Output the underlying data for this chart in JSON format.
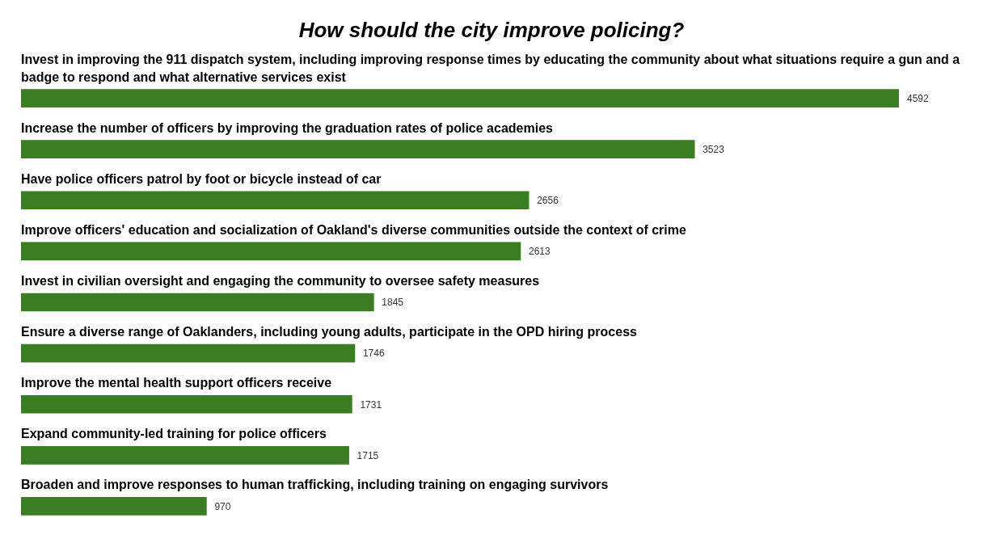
{
  "chart_data": {
    "type": "bar",
    "orientation": "horizontal",
    "title": "How should the city improve policing?",
    "categories": [
      "Invest in improving the 911 dispatch system, including improving response times by educating the community about what situations require a gun and a badge to respond and what alternative services exist",
      "Increase the number of officers by improving the graduation rates of police academies",
      "Have police officers patrol by foot or bicycle instead of car",
      "Improve officers' education and socialization of Oakland's diverse communities outside the context of crime",
      "Invest in civilian oversight and engaging the community to oversee safety measures",
      "Ensure a diverse range of Oaklanders, including young adults, participate in the OPD hiring process",
      "Improve the mental health support officers receive",
      "Expand community-led training for police officers",
      "Broaden and improve responses to human trafficking, including training on engaging survivors"
    ],
    "values": [
      4592,
      3523,
      2656,
      2613,
      1845,
      1746,
      1731,
      1715,
      970
    ],
    "color": "#3a7d22",
    "data_labels": true
  }
}
